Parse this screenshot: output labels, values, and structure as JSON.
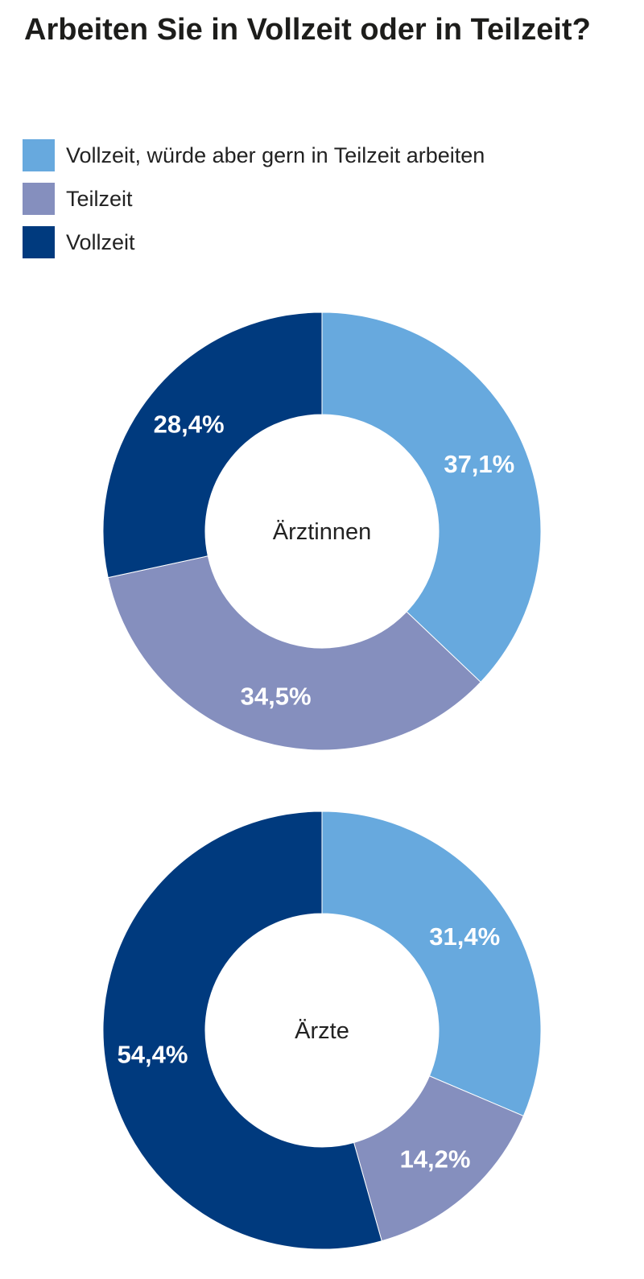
{
  "chart_data": {
    "type": "pie",
    "title": "Arbeiten Sie in Vollzeit oder in Teilzeit?",
    "legend": {
      "position": "top-left",
      "entries": [
        {
          "label": "Vollzeit, würde aber gern in Teilzeit arbeiten",
          "color": "#67a9de"
        },
        {
          "label": "Teilzeit",
          "color": "#858fbe"
        },
        {
          "label": "Vollzeit",
          "color": "#003a7e"
        }
      ]
    },
    "donuts": [
      {
        "center_label": "Ärztinnen",
        "values": [
          37.1,
          34.5,
          28.4
        ],
        "labels": [
          "37,1%",
          "34,5%",
          "28,4%"
        ]
      },
      {
        "center_label": "Ärzte",
        "values": [
          31.4,
          14.2,
          54.4
        ],
        "labels": [
          "31,4%",
          "14,2%",
          "54,4%"
        ]
      }
    ]
  }
}
